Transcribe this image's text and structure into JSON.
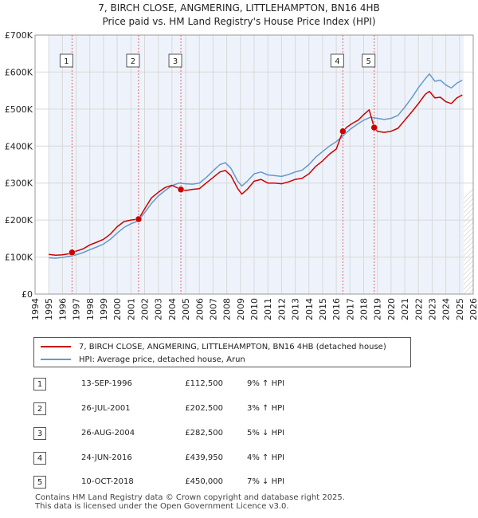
{
  "chart_data": {
    "type": "line",
    "title": "7, BIRCH CLOSE, ANGMERING, LITTLEHAMPTON, BN16 4HB",
    "subtitle": "Price paid vs. HM Land Registry's House Price Index (HPI)",
    "xlabel": "",
    "ylabel": "",
    "xlim": [
      1994,
      2026
    ],
    "ylim": [
      0,
      700000
    ],
    "x_ticks": [
      "1994",
      "1995",
      "1996",
      "1997",
      "1998",
      "1999",
      "2000",
      "2001",
      "2002",
      "2003",
      "2004",
      "2005",
      "2006",
      "2007",
      "2008",
      "2009",
      "2010",
      "2011",
      "2012",
      "2013",
      "2014",
      "2015",
      "2016",
      "2017",
      "2018",
      "2019",
      "2020",
      "2021",
      "2022",
      "2023",
      "2024",
      "2025",
      "2026"
    ],
    "y_ticks": [
      {
        "value": 0,
        "label": "£0"
      },
      {
        "value": 100000,
        "label": "£100K"
      },
      {
        "value": 200000,
        "label": "£200K"
      },
      {
        "value": 300000,
        "label": "£300K"
      },
      {
        "value": 400000,
        "label": "£400K"
      },
      {
        "value": 500000,
        "label": "£500K"
      },
      {
        "value": 600000,
        "label": "£600K"
      },
      {
        "value": 700000,
        "label": "£700K"
      }
    ],
    "data_range": [
      1995.0,
      2025.3
    ],
    "series": [
      {
        "name": "7, BIRCH CLOSE, ANGMERING, LITTLEHAMPTON, BN16 4HB (detached house)",
        "color": "#cc0000",
        "points": [
          [
            1995.0,
            107000
          ],
          [
            1995.5,
            105000
          ],
          [
            1996.0,
            106000
          ],
          [
            1996.5,
            109000
          ],
          [
            1996.7,
            112500
          ],
          [
            1997.5,
            122000
          ],
          [
            1998.0,
            133000
          ],
          [
            1998.5,
            140000
          ],
          [
            1999.0,
            148000
          ],
          [
            1999.5,
            162000
          ],
          [
            2000.0,
            182000
          ],
          [
            2000.5,
            196000
          ],
          [
            2001.0,
            200000
          ],
          [
            2001.56,
            202500
          ],
          [
            2002.0,
            230000
          ],
          [
            2002.5,
            260000
          ],
          [
            2003.0,
            275000
          ],
          [
            2003.5,
            288000
          ],
          [
            2004.0,
            294000
          ],
          [
            2004.65,
            282500
          ],
          [
            2005.0,
            280000
          ],
          [
            2005.5,
            283000
          ],
          [
            2006.0,
            285000
          ],
          [
            2006.5,
            300000
          ],
          [
            2007.0,
            315000
          ],
          [
            2007.5,
            330000
          ],
          [
            2007.9,
            334000
          ],
          [
            2008.3,
            320000
          ],
          [
            2008.8,
            285000
          ],
          [
            2009.1,
            270000
          ],
          [
            2009.5,
            283000
          ],
          [
            2010.0,
            305000
          ],
          [
            2010.5,
            310000
          ],
          [
            2011.0,
            300000
          ],
          [
            2011.5,
            300000
          ],
          [
            2012.0,
            298000
          ],
          [
            2012.5,
            303000
          ],
          [
            2013.0,
            310000
          ],
          [
            2013.5,
            313000
          ],
          [
            2014.0,
            325000
          ],
          [
            2014.5,
            345000
          ],
          [
            2015.0,
            360000
          ],
          [
            2015.5,
            378000
          ],
          [
            2016.0,
            392000
          ],
          [
            2016.48,
            439950
          ],
          [
            2016.8,
            452000
          ],
          [
            2017.2,
            462000
          ],
          [
            2017.6,
            470000
          ],
          [
            2018.0,
            485000
          ],
          [
            2018.4,
            498000
          ],
          [
            2018.77,
            450000
          ],
          [
            2019.0,
            440000
          ],
          [
            2019.5,
            437000
          ],
          [
            2020.0,
            440000
          ],
          [
            2020.5,
            448000
          ],
          [
            2021.0,
            470000
          ],
          [
            2021.5,
            492000
          ],
          [
            2022.0,
            515000
          ],
          [
            2022.5,
            540000
          ],
          [
            2022.8,
            548000
          ],
          [
            2023.2,
            530000
          ],
          [
            2023.6,
            532000
          ],
          [
            2024.0,
            520000
          ],
          [
            2024.4,
            515000
          ],
          [
            2024.8,
            530000
          ],
          [
            2025.2,
            538000
          ]
        ]
      },
      {
        "name": "HPI: Average price, detached house, Arun",
        "color": "#6699cc",
        "points": [
          [
            1995.0,
            98000
          ],
          [
            1995.5,
            97000
          ],
          [
            1996.0,
            99000
          ],
          [
            1996.5,
            102000
          ],
          [
            1997.0,
            106000
          ],
          [
            1997.5,
            112000
          ],
          [
            1998.0,
            120000
          ],
          [
            1998.5,
            127000
          ],
          [
            1999.0,
            135000
          ],
          [
            1999.5,
            148000
          ],
          [
            2000.0,
            165000
          ],
          [
            2000.5,
            180000
          ],
          [
            2001.0,
            190000
          ],
          [
            2001.5,
            197000
          ],
          [
            2002.0,
            220000
          ],
          [
            2002.5,
            245000
          ],
          [
            2003.0,
            265000
          ],
          [
            2003.5,
            280000
          ],
          [
            2004.0,
            293000
          ],
          [
            2004.5,
            300000
          ],
          [
            2005.0,
            298000
          ],
          [
            2005.5,
            297000
          ],
          [
            2006.0,
            300000
          ],
          [
            2006.5,
            315000
          ],
          [
            2007.0,
            333000
          ],
          [
            2007.5,
            350000
          ],
          [
            2007.9,
            355000
          ],
          [
            2008.3,
            340000
          ],
          [
            2008.8,
            305000
          ],
          [
            2009.1,
            292000
          ],
          [
            2009.5,
            305000
          ],
          [
            2010.0,
            325000
          ],
          [
            2010.5,
            330000
          ],
          [
            2011.0,
            322000
          ],
          [
            2011.5,
            320000
          ],
          [
            2012.0,
            318000
          ],
          [
            2012.5,
            323000
          ],
          [
            2013.0,
            330000
          ],
          [
            2013.5,
            335000
          ],
          [
            2014.0,
            350000
          ],
          [
            2014.5,
            370000
          ],
          [
            2015.0,
            385000
          ],
          [
            2015.5,
            400000
          ],
          [
            2016.0,
            412000
          ],
          [
            2016.5,
            428000
          ],
          [
            2017.0,
            445000
          ],
          [
            2017.5,
            458000
          ],
          [
            2018.0,
            470000
          ],
          [
            2018.5,
            478000
          ],
          [
            2019.0,
            475000
          ],
          [
            2019.5,
            472000
          ],
          [
            2020.0,
            475000
          ],
          [
            2020.5,
            483000
          ],
          [
            2021.0,
            505000
          ],
          [
            2021.5,
            530000
          ],
          [
            2022.0,
            558000
          ],
          [
            2022.5,
            582000
          ],
          [
            2022.8,
            595000
          ],
          [
            2023.2,
            575000
          ],
          [
            2023.6,
            578000
          ],
          [
            2024.0,
            565000
          ],
          [
            2024.4,
            557000
          ],
          [
            2024.8,
            570000
          ],
          [
            2025.2,
            578000
          ]
        ]
      }
    ],
    "sales": [
      {
        "id": "1",
        "year": 1996.7,
        "price": 112500
      },
      {
        "id": "2",
        "year": 2001.56,
        "price": 202500
      },
      {
        "id": "3",
        "year": 2004.65,
        "price": 282500
      },
      {
        "id": "4",
        "year": 2016.48,
        "price": 439950
      },
      {
        "id": "5",
        "year": 2018.77,
        "price": 450000
      }
    ],
    "legend_position": "bottom"
  },
  "legend": {
    "property_label": "7, BIRCH CLOSE, ANGMERING, LITTLEHAMPTON, BN16 4HB (detached house)",
    "hpi_label": "HPI: Average price, detached house, Arun"
  },
  "sales_table": [
    {
      "num": "1",
      "date": "13-SEP-1996",
      "price": "£112,500",
      "hpi": "9% ↑ HPI"
    },
    {
      "num": "2",
      "date": "26-JUL-2001",
      "price": "£202,500",
      "hpi": "3% ↑ HPI"
    },
    {
      "num": "3",
      "date": "26-AUG-2004",
      "price": "£282,500",
      "hpi": "5% ↓ HPI"
    },
    {
      "num": "4",
      "date": "24-JUN-2016",
      "price": "£439,950",
      "hpi": "4% ↑ HPI"
    },
    {
      "num": "5",
      "date": "10-OCT-2018",
      "price": "£450,000",
      "hpi": "7% ↓ HPI"
    }
  ],
  "footer": {
    "line1": "Contains HM Land Registry data © Crown copyright and database right 2025.",
    "line2": "This data is licensed under the Open Government Licence v3.0."
  }
}
